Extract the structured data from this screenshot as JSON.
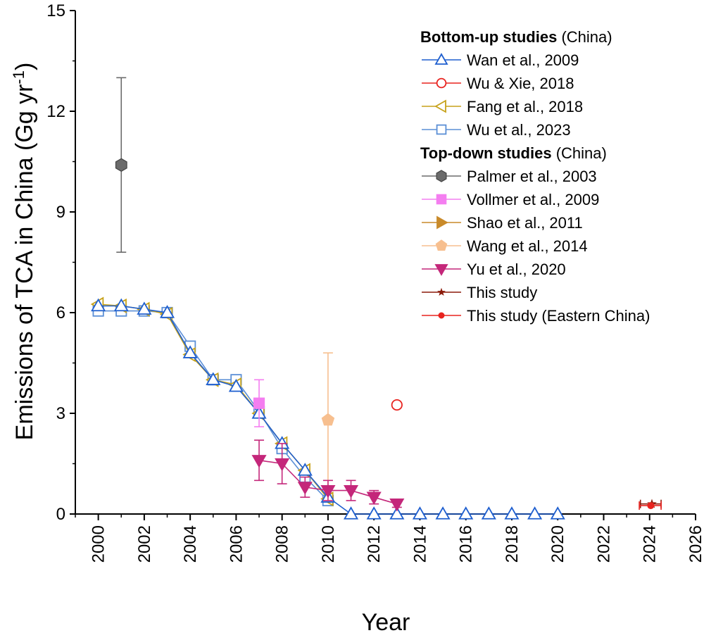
{
  "chart_data": {
    "type": "line",
    "xlabel": "Year",
    "ylabel_main": "Emissions of TCA in China (Gg yr",
    "ylabel_sup": "-1",
    "ylabel_close": ")",
    "xlim": [
      1999,
      2026
    ],
    "ylim": [
      0,
      15
    ],
    "x_ticks": [
      "2000",
      "2002",
      "2004",
      "2006",
      "2008",
      "2010",
      "2012",
      "2014",
      "2016",
      "2018",
      "2020",
      "2022",
      "2024",
      "2026"
    ],
    "y_ticks": [
      "0",
      "3",
      "6",
      "9",
      "12",
      "15"
    ],
    "legend_groups": [
      {
        "heading_bold": "Bottom-up studies",
        "heading_rest": " (China)"
      },
      {
        "heading_bold": "Top-down studies",
        "heading_rest": " (China)"
      }
    ],
    "series": [
      {
        "name": "Wan et al., 2009",
        "group": 0,
        "color": "#1f5fcf",
        "marker": "triangle-up",
        "filled": false,
        "line": true,
        "x": [
          2000,
          2001,
          2002,
          2003,
          2004,
          2005,
          2006,
          2007,
          2008,
          2009,
          2010,
          2011,
          2012,
          2013,
          2014,
          2015,
          2016,
          2017,
          2018,
          2019,
          2020
        ],
        "y": [
          6.2,
          6.2,
          6.1,
          6.0,
          4.8,
          4.0,
          3.8,
          3.0,
          2.1,
          1.3,
          0.5,
          0,
          0,
          0,
          0,
          0,
          0,
          0,
          0,
          0,
          0
        ]
      },
      {
        "name": "Wu & Xie, 2018",
        "group": 0,
        "color": "#e8231f",
        "marker": "circle",
        "filled": false,
        "line": false,
        "x": [
          2013
        ],
        "y": [
          3.25
        ]
      },
      {
        "name": "Fang et al., 2018",
        "group": 0,
        "color": "#c7a21a",
        "marker": "triangle-left",
        "filled": false,
        "line": true,
        "x": [
          2000,
          2001,
          2002,
          2003,
          2004,
          2005,
          2006,
          2007,
          2008,
          2009,
          2010
        ],
        "y": [
          6.25,
          6.2,
          6.1,
          5.95,
          4.75,
          4.0,
          3.85,
          3.0,
          2.1,
          1.3,
          0.45
        ]
      },
      {
        "name": "Wu et al., 2023",
        "group": 0,
        "color": "#5b8fd6",
        "marker": "square",
        "filled": false,
        "line": true,
        "x": [
          2000,
          2001,
          2002,
          2003,
          2004,
          2005,
          2006,
          2007,
          2008,
          2009,
          2010
        ],
        "y": [
          6.05,
          6.05,
          6.05,
          6.0,
          5.0,
          4.0,
          4.0,
          3.05,
          1.95,
          1.1,
          0.4
        ]
      },
      {
        "name": "Palmer et al., 2003",
        "group": 1,
        "color": "#6b6b6b",
        "marker": "hexagon",
        "filled": true,
        "line": false,
        "x": [
          2001
        ],
        "y": [
          10.4
        ],
        "err_low": [
          7.8
        ],
        "err_high": [
          13.0
        ]
      },
      {
        "name": "Vollmer et al., 2009",
        "group": 1,
        "color": "#f47ef0",
        "marker": "square",
        "filled": true,
        "line": false,
        "x": [
          2007
        ],
        "y": [
          3.3
        ],
        "err_low": [
          2.6
        ],
        "err_high": [
          4.0
        ]
      },
      {
        "name": "Shao et al., 2011",
        "group": 1,
        "color": "#c98a2a",
        "marker": "triangle-right",
        "filled": true,
        "line": false,
        "x": [],
        "y": []
      },
      {
        "name": "Wang et al., 2014",
        "group": 1,
        "color": "#f7bf8f",
        "marker": "pentagon",
        "filled": true,
        "line": false,
        "x": [
          2010
        ],
        "y": [
          2.8
        ],
        "err_low": [
          0.8
        ],
        "err_high": [
          4.8
        ]
      },
      {
        "name": "Yu et al., 2020",
        "group": 1,
        "color": "#c4277a",
        "marker": "triangle-down",
        "filled": true,
        "line": true,
        "x": [
          2007,
          2008,
          2009,
          2010,
          2011,
          2012,
          2013
        ],
        "y": [
          1.6,
          1.5,
          0.8,
          0.7,
          0.7,
          0.5,
          0.3
        ],
        "err_low": [
          1.0,
          0.9,
          0.5,
          0.4,
          0.4,
          0.3,
          0.2
        ],
        "err_high": [
          2.2,
          2.1,
          1.1,
          1.0,
          1.0,
          0.7,
          0.4
        ]
      },
      {
        "name": "This study",
        "group": 1,
        "color": "#8b1a0a",
        "marker": "star",
        "filled": true,
        "line": true,
        "x": [
          2024.1
        ],
        "y": [
          0.3
        ],
        "xerr_low": [
          2023.6
        ],
        "xerr_high": [
          2024.5
        ]
      },
      {
        "name": "This study (Eastern China)",
        "group": 1,
        "color": "#e8231f",
        "marker": "dot",
        "filled": true,
        "line": true,
        "x": [
          2024.05
        ],
        "y": [
          0.25
        ],
        "xerr_low": [
          2023.55
        ],
        "xerr_high": [
          2024.5
        ]
      }
    ]
  }
}
